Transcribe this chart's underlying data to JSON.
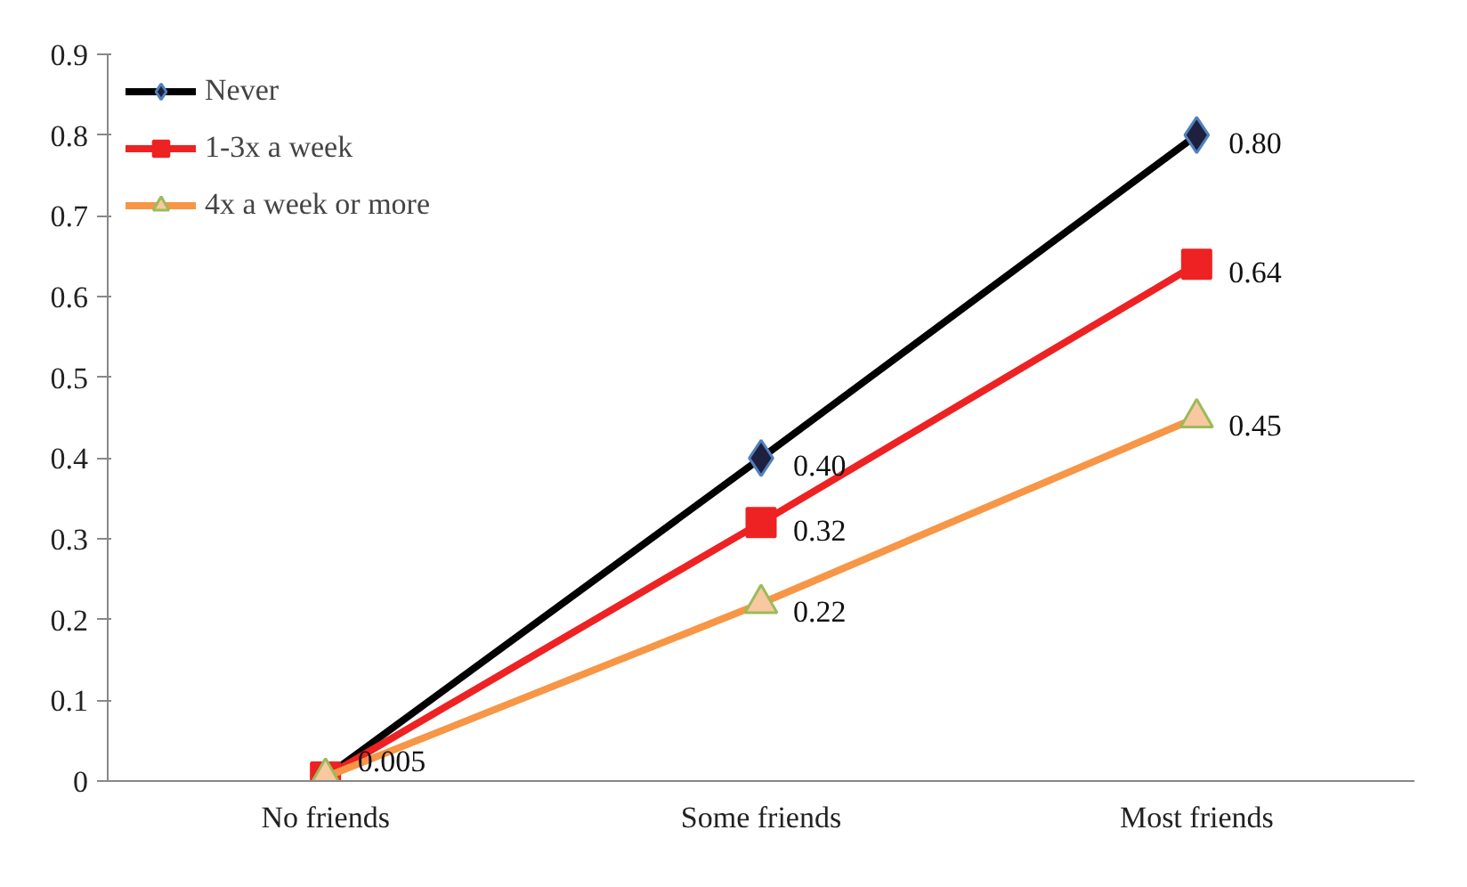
{
  "chart_data": {
    "type": "line",
    "categories": [
      "No friends",
      "Some friends",
      "Most friends"
    ],
    "ylim": [
      0,
      0.9
    ],
    "yticks": [
      0,
      0.1,
      0.2,
      0.3,
      0.4,
      0.5,
      0.6,
      0.7,
      0.8,
      0.9
    ],
    "grid": false,
    "legend": "top left",
    "series": [
      {
        "name": "Never",
        "color": "#000000",
        "marker": "diamond",
        "values": [
          0.005,
          0.4,
          0.8
        ],
        "value_labels": [
          null,
          "0.40",
          "0.80"
        ]
      },
      {
        "name": "1-3x a week",
        "color": "#ee2222",
        "marker": "square",
        "values": [
          0.005,
          0.32,
          0.64
        ],
        "value_labels": [
          null,
          "0.32",
          "0.64"
        ]
      },
      {
        "name": "4x a week or more",
        "color": "#f79646",
        "marker": "triangle",
        "values": [
          0.005,
          0.22,
          0.45
        ],
        "value_labels": [
          "0.005",
          "0.22",
          "0.45"
        ]
      }
    ]
  }
}
